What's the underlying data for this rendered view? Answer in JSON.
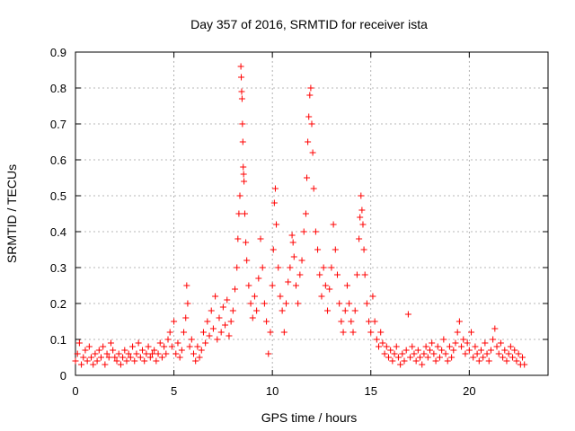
{
  "chart_data": {
    "type": "scatter",
    "title": "Day 357 of 2016, SRMTID for receiver ista",
    "xlabel": "GPS time / hours",
    "ylabel": "SRMTID / TECUs",
    "xlim": [
      0,
      24
    ],
    "ylim": [
      0,
      0.9
    ],
    "xticks": [
      0,
      5,
      10,
      15,
      20
    ],
    "xtick_labels": [
      "0",
      "5",
      "10",
      "15",
      "20"
    ],
    "yticks": [
      0,
      0.1,
      0.2,
      0.3,
      0.4,
      0.5,
      0.6,
      0.7,
      0.8,
      0.9
    ],
    "ytick_labels": [
      "0",
      "0.1",
      "0.2",
      "0.3",
      "0.4",
      "0.5",
      "0.6",
      "0.7",
      "0.8",
      "0.9"
    ],
    "grid": true,
    "marker": "+",
    "series": [
      {
        "name": "SRMTID",
        "color": "#ff0000",
        "points": [
          [
            0.0,
            0.04
          ],
          [
            0.1,
            0.06
          ],
          [
            0.2,
            0.09
          ],
          [
            0.3,
            0.03
          ],
          [
            0.4,
            0.05
          ],
          [
            0.5,
            0.07
          ],
          [
            0.6,
            0.04
          ],
          [
            0.7,
            0.08
          ],
          [
            0.8,
            0.05
          ],
          [
            0.9,
            0.03
          ],
          [
            1.0,
            0.06
          ],
          [
            1.1,
            0.04
          ],
          [
            1.2,
            0.07
          ],
          [
            1.3,
            0.05
          ],
          [
            1.4,
            0.08
          ],
          [
            1.5,
            0.03
          ],
          [
            1.6,
            0.06
          ],
          [
            1.7,
            0.05
          ],
          [
            1.8,
            0.09
          ],
          [
            1.9,
            0.07
          ],
          [
            2.0,
            0.05
          ],
          [
            2.1,
            0.04
          ],
          [
            2.2,
            0.06
          ],
          [
            2.3,
            0.03
          ],
          [
            2.4,
            0.05
          ],
          [
            2.5,
            0.07
          ],
          [
            2.6,
            0.04
          ],
          [
            2.7,
            0.06
          ],
          [
            2.8,
            0.05
          ],
          [
            2.9,
            0.08
          ],
          [
            3.0,
            0.04
          ],
          [
            3.1,
            0.06
          ],
          [
            3.2,
            0.09
          ],
          [
            3.3,
            0.05
          ],
          [
            3.4,
            0.07
          ],
          [
            3.5,
            0.04
          ],
          [
            3.6,
            0.06
          ],
          [
            3.7,
            0.08
          ],
          [
            3.8,
            0.05
          ],
          [
            3.9,
            0.06
          ],
          [
            4.0,
            0.07
          ],
          [
            4.1,
            0.04
          ],
          [
            4.2,
            0.06
          ],
          [
            4.3,
            0.09
          ],
          [
            4.4,
            0.05
          ],
          [
            4.5,
            0.08
          ],
          [
            4.6,
            0.06
          ],
          [
            4.7,
            0.1
          ],
          [
            4.8,
            0.12
          ],
          [
            4.9,
            0.08
          ],
          [
            5.0,
            0.15
          ],
          [
            5.1,
            0.06
          ],
          [
            5.2,
            0.09
          ],
          [
            5.3,
            0.05
          ],
          [
            5.4,
            0.07
          ],
          [
            5.5,
            0.12
          ],
          [
            5.6,
            0.16
          ],
          [
            5.65,
            0.25
          ],
          [
            5.7,
            0.2
          ],
          [
            5.8,
            0.08
          ],
          [
            5.9,
            0.1
          ],
          [
            6.0,
            0.06
          ],
          [
            6.1,
            0.04
          ],
          [
            6.2,
            0.08
          ],
          [
            6.3,
            0.05
          ],
          [
            6.4,
            0.07
          ],
          [
            6.5,
            0.12
          ],
          [
            6.6,
            0.09
          ],
          [
            6.7,
            0.15
          ],
          [
            6.8,
            0.11
          ],
          [
            6.9,
            0.18
          ],
          [
            7.0,
            0.13
          ],
          [
            7.1,
            0.22
          ],
          [
            7.2,
            0.1
          ],
          [
            7.3,
            0.16
          ],
          [
            7.4,
            0.12
          ],
          [
            7.5,
            0.19
          ],
          [
            7.6,
            0.14
          ],
          [
            7.7,
            0.21
          ],
          [
            7.8,
            0.11
          ],
          [
            7.9,
            0.15
          ],
          [
            8.0,
            0.18
          ],
          [
            8.1,
            0.24
          ],
          [
            8.2,
            0.3
          ],
          [
            8.25,
            0.38
          ],
          [
            8.3,
            0.45
          ],
          [
            8.35,
            0.5
          ],
          [
            8.4,
            0.86
          ],
          [
            8.42,
            0.83
          ],
          [
            8.44,
            0.79
          ],
          [
            8.46,
            0.77
          ],
          [
            8.48,
            0.7
          ],
          [
            8.5,
            0.65
          ],
          [
            8.52,
            0.58
          ],
          [
            8.54,
            0.56
          ],
          [
            8.56,
            0.54
          ],
          [
            8.6,
            0.45
          ],
          [
            8.65,
            0.37
          ],
          [
            8.7,
            0.32
          ],
          [
            8.8,
            0.25
          ],
          [
            8.9,
            0.2
          ],
          [
            9.0,
            0.16
          ],
          [
            9.1,
            0.22
          ],
          [
            9.2,
            0.18
          ],
          [
            9.3,
            0.27
          ],
          [
            9.4,
            0.38
          ],
          [
            9.5,
            0.3
          ],
          [
            9.6,
            0.2
          ],
          [
            9.7,
            0.15
          ],
          [
            9.8,
            0.06
          ],
          [
            9.9,
            0.12
          ],
          [
            10.0,
            0.25
          ],
          [
            10.05,
            0.35
          ],
          [
            10.1,
            0.48
          ],
          [
            10.15,
            0.52
          ],
          [
            10.2,
            0.42
          ],
          [
            10.3,
            0.3
          ],
          [
            10.4,
            0.22
          ],
          [
            10.5,
            0.18
          ],
          [
            10.6,
            0.12
          ],
          [
            10.7,
            0.2
          ],
          [
            10.8,
            0.26
          ],
          [
            10.9,
            0.3
          ],
          [
            11.0,
            0.39
          ],
          [
            11.05,
            0.37
          ],
          [
            11.1,
            0.33
          ],
          [
            11.2,
            0.25
          ],
          [
            11.3,
            0.2
          ],
          [
            11.4,
            0.28
          ],
          [
            11.5,
            0.32
          ],
          [
            11.6,
            0.4
          ],
          [
            11.7,
            0.45
          ],
          [
            11.75,
            0.55
          ],
          [
            11.8,
            0.65
          ],
          [
            11.85,
            0.72
          ],
          [
            11.9,
            0.78
          ],
          [
            11.95,
            0.8
          ],
          [
            12.0,
            0.7
          ],
          [
            12.05,
            0.62
          ],
          [
            12.1,
            0.52
          ],
          [
            12.2,
            0.4
          ],
          [
            12.3,
            0.35
          ],
          [
            12.4,
            0.28
          ],
          [
            12.5,
            0.22
          ],
          [
            12.6,
            0.3
          ],
          [
            12.7,
            0.25
          ],
          [
            12.8,
            0.18
          ],
          [
            12.9,
            0.24
          ],
          [
            13.0,
            0.3
          ],
          [
            13.1,
            0.42
          ],
          [
            13.2,
            0.35
          ],
          [
            13.3,
            0.28
          ],
          [
            13.4,
            0.2
          ],
          [
            13.5,
            0.15
          ],
          [
            13.6,
            0.12
          ],
          [
            13.7,
            0.18
          ],
          [
            13.8,
            0.25
          ],
          [
            13.9,
            0.2
          ],
          [
            14.0,
            0.15
          ],
          [
            14.1,
            0.12
          ],
          [
            14.2,
            0.18
          ],
          [
            14.3,
            0.28
          ],
          [
            14.4,
            0.38
          ],
          [
            14.45,
            0.44
          ],
          [
            14.5,
            0.5
          ],
          [
            14.55,
            0.46
          ],
          [
            14.6,
            0.42
          ],
          [
            14.65,
            0.35
          ],
          [
            14.7,
            0.28
          ],
          [
            14.8,
            0.2
          ],
          [
            14.9,
            0.15
          ],
          [
            15.0,
            0.12
          ],
          [
            15.1,
            0.22
          ],
          [
            15.2,
            0.15
          ],
          [
            15.3,
            0.1
          ],
          [
            15.4,
            0.08
          ],
          [
            15.5,
            0.12
          ],
          [
            15.6,
            0.09
          ],
          [
            15.7,
            0.06
          ],
          [
            15.8,
            0.08
          ],
          [
            15.9,
            0.05
          ],
          [
            16.0,
            0.07
          ],
          [
            16.1,
            0.04
          ],
          [
            16.2,
            0.06
          ],
          [
            16.3,
            0.08
          ],
          [
            16.4,
            0.05
          ],
          [
            16.5,
            0.03
          ],
          [
            16.6,
            0.06
          ],
          [
            16.7,
            0.04
          ],
          [
            16.8,
            0.07
          ],
          [
            16.9,
            0.17
          ],
          [
            17.0,
            0.05
          ],
          [
            17.1,
            0.08
          ],
          [
            17.2,
            0.06
          ],
          [
            17.3,
            0.04
          ],
          [
            17.4,
            0.07
          ],
          [
            17.5,
            0.05
          ],
          [
            17.6,
            0.03
          ],
          [
            17.7,
            0.06
          ],
          [
            17.8,
            0.08
          ],
          [
            17.9,
            0.05
          ],
          [
            18.0,
            0.07
          ],
          [
            18.1,
            0.09
          ],
          [
            18.2,
            0.06
          ],
          [
            18.3,
            0.04
          ],
          [
            18.4,
            0.08
          ],
          [
            18.5,
            0.05
          ],
          [
            18.6,
            0.07
          ],
          [
            18.7,
            0.1
          ],
          [
            18.8,
            0.06
          ],
          [
            18.9,
            0.04
          ],
          [
            19.0,
            0.08
          ],
          [
            19.1,
            0.05
          ],
          [
            19.2,
            0.07
          ],
          [
            19.3,
            0.09
          ],
          [
            19.4,
            0.12
          ],
          [
            19.5,
            0.15
          ],
          [
            19.6,
            0.08
          ],
          [
            19.7,
            0.1
          ],
          [
            19.8,
            0.06
          ],
          [
            19.9,
            0.09
          ],
          [
            20.0,
            0.07
          ],
          [
            20.1,
            0.12
          ],
          [
            20.2,
            0.05
          ],
          [
            20.3,
            0.08
          ],
          [
            20.4,
            0.06
          ],
          [
            20.5,
            0.04
          ],
          [
            20.6,
            0.07
          ],
          [
            20.7,
            0.05
          ],
          [
            20.8,
            0.09
          ],
          [
            20.9,
            0.06
          ],
          [
            21.0,
            0.04
          ],
          [
            21.1,
            0.07
          ],
          [
            21.2,
            0.1
          ],
          [
            21.3,
            0.13
          ],
          [
            21.4,
            0.08
          ],
          [
            21.5,
            0.06
          ],
          [
            21.6,
            0.09
          ],
          [
            21.7,
            0.05
          ],
          [
            21.8,
            0.07
          ],
          [
            21.9,
            0.04
          ],
          [
            22.0,
            0.06
          ],
          [
            22.1,
            0.08
          ],
          [
            22.2,
            0.05
          ],
          [
            22.3,
            0.07
          ],
          [
            22.4,
            0.04
          ],
          [
            22.5,
            0.06
          ],
          [
            22.6,
            0.03
          ],
          [
            22.7,
            0.05
          ],
          [
            22.8,
            0.03
          ]
        ]
      }
    ]
  }
}
